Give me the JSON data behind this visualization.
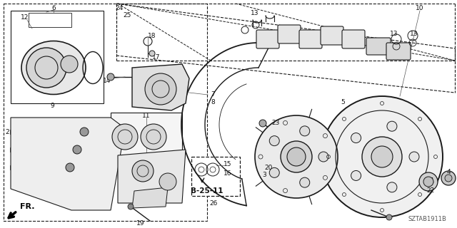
{
  "bg_color": "#ffffff",
  "diagram_id": "SZTAB1911B",
  "line_color": "#1a1a1a",
  "text_color": "#111111"
}
